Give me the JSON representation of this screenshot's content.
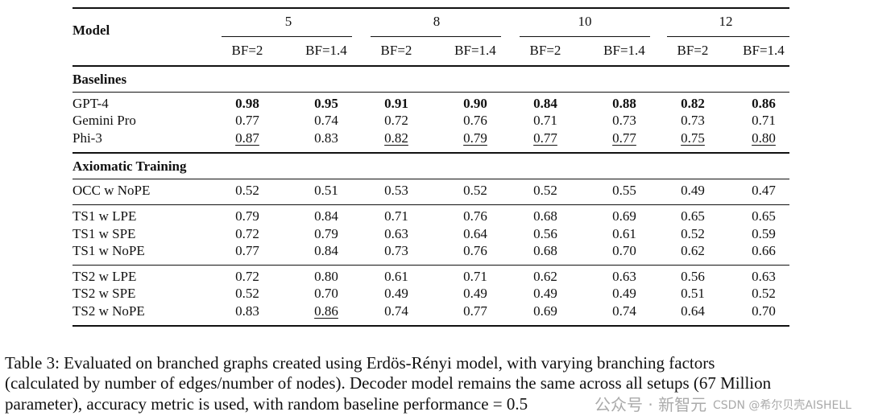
{
  "table": {
    "model_header": "Model",
    "groups": [
      "5",
      "8",
      "10",
      "12"
    ],
    "subheaders": [
      "BF=2",
      "BF=1.4",
      "BF=2",
      "BF=1.4",
      "BF=2",
      "BF=1.4",
      "BF=2",
      "BF=1.4"
    ],
    "sections": [
      {
        "title": "Baselines",
        "blocks": [
          [
            {
              "model": "GPT-4",
              "values": [
                "0.98",
                "0.95",
                "0.91",
                "0.90",
                "0.84",
                "0.88",
                "0.82",
                "0.86"
              ],
              "bold": [
                0,
                1,
                2,
                3,
                4,
                5,
                6,
                7
              ],
              "underline": []
            },
            {
              "model": "Gemini Pro",
              "values": [
                "0.77",
                "0.74",
                "0.72",
                "0.76",
                "0.71",
                "0.73",
                "0.73",
                "0.71"
              ],
              "bold": [],
              "underline": []
            },
            {
              "model": "Phi-3",
              "values": [
                "0.87",
                "0.83",
                "0.82",
                "0.79",
                "0.77",
                "0.77",
                "0.75",
                "0.80"
              ],
              "bold": [],
              "underline": [
                0,
                2,
                3,
                4,
                5,
                6,
                7
              ]
            }
          ]
        ]
      },
      {
        "title": "Axiomatic Training",
        "blocks": [
          [
            {
              "model": "OCC w NoPE",
              "values": [
                "0.52",
                "0.51",
                "0.53",
                "0.52",
                "0.52",
                "0.55",
                "0.49",
                "0.47"
              ],
              "bold": [],
              "underline": []
            }
          ],
          [
            {
              "model": "TS1 w LPE",
              "values": [
                "0.79",
                "0.84",
                "0.71",
                "0.76",
                "0.68",
                "0.69",
                "0.65",
                "0.65"
              ],
              "bold": [],
              "underline": []
            },
            {
              "model": "TS1 w SPE",
              "values": [
                "0.72",
                "0.79",
                "0.63",
                "0.64",
                "0.56",
                "0.61",
                "0.52",
                "0.59"
              ],
              "bold": [],
              "underline": []
            },
            {
              "model": "TS1 w NoPE",
              "values": [
                "0.77",
                "0.84",
                "0.73",
                "0.76",
                "0.68",
                "0.70",
                "0.62",
                "0.66"
              ],
              "bold": [],
              "underline": []
            }
          ],
          [
            {
              "model": "TS2 w LPE",
              "values": [
                "0.72",
                "0.80",
                "0.61",
                "0.71",
                "0.62",
                "0.63",
                "0.56",
                "0.63"
              ],
              "bold": [],
              "underline": []
            },
            {
              "model": "TS2 w SPE",
              "values": [
                "0.52",
                "0.70",
                "0.49",
                "0.49",
                "0.49",
                "0.49",
                "0.51",
                "0.52"
              ],
              "bold": [],
              "underline": []
            },
            {
              "model": "TS2 w NoPE",
              "values": [
                "0.83",
                "0.86",
                "0.74",
                "0.77",
                "0.69",
                "0.74",
                "0.64",
                "0.70"
              ],
              "bold": [],
              "underline": [
                1
              ]
            }
          ]
        ]
      }
    ]
  },
  "caption": {
    "label": "Table 3:",
    "lines": [
      "Evaluated on branched graphs created using Erdös-Rényi model, with varying branching factors",
      "(calculated by number of edges/number of nodes). Decoder model remains the same across all setups (67 Million",
      "parameter), accuracy metric is used, with random baseline performance = 0.5"
    ]
  },
  "watermark": {
    "line1": "公众号 · 新智元",
    "line2": "CSDN @希尔贝壳AISHELL"
  }
}
